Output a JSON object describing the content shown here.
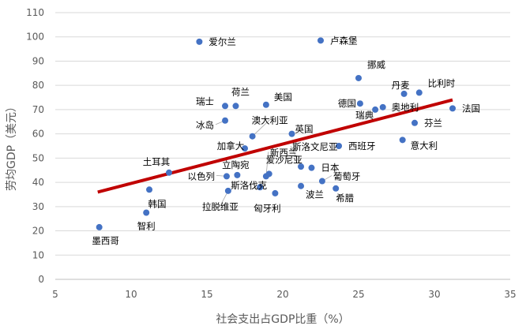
{
  "chart_data": {
    "type": "scatter",
    "xlabel": "社会支出占GDP比重（%）",
    "ylabel": "劳均GDP（美元）",
    "xlim": [
      5,
      35
    ],
    "ylim": [
      0,
      110
    ],
    "xticks": [
      5,
      10,
      15,
      20,
      25,
      30,
      35
    ],
    "yticks": [
      0,
      10,
      20,
      30,
      40,
      50,
      60,
      70,
      80,
      90,
      100,
      110
    ],
    "grid": "horizontal",
    "colors": {
      "points": "#4472c4",
      "trendline": "#c00000",
      "grid": "#d9d9d9"
    },
    "trendline": {
      "x": [
        7.8,
        31.2
      ],
      "y": [
        36,
        74
      ]
    },
    "points": [
      {
        "label": "墨西哥",
        "x": 7.9,
        "y": 21.5
      },
      {
        "label": "智利",
        "x": 11.0,
        "y": 27.5
      },
      {
        "label": "韩国",
        "x": 11.2,
        "y": 37
      },
      {
        "label": "土耳其",
        "x": 12.5,
        "y": 44
      },
      {
        "label": "爱尔兰",
        "x": 14.5,
        "y": 98
      },
      {
        "label": "瑞士",
        "x": 16.2,
        "y": 71.5
      },
      {
        "label": "荷兰",
        "x": 16.9,
        "y": 71.5
      },
      {
        "label": "冰岛",
        "x": 16.2,
        "y": 65.5
      },
      {
        "label": "以色列",
        "x": 16.3,
        "y": 42.5
      },
      {
        "label": "拉脱维亚",
        "x": 16.4,
        "y": 36.5
      },
      {
        "label": "立陶宛",
        "x": 17.0,
        "y": 43
      },
      {
        "label": "加拿大",
        "x": 17.5,
        "y": 54
      },
      {
        "label": "澳大利亚",
        "x": 18.0,
        "y": 59
      },
      {
        "label": "斯洛伐克",
        "x": 18.5,
        "y": 38
      },
      {
        "label": "美国",
        "x": 18.9,
        "y": 72
      },
      {
        "label": "新西兰",
        "x": 18.9,
        "y": 42.5
      },
      {
        "label": "爱沙尼亚",
        "x": 19.1,
        "y": 43.5
      },
      {
        "label": "匈牙利",
        "x": 19.5,
        "y": 35.5
      },
      {
        "label": "英国",
        "x": 20.6,
        "y": 60
      },
      {
        "label": "斯洛文尼亚",
        "x": 21.2,
        "y": 46.5
      },
      {
        "label": "波兰",
        "x": 21.2,
        "y": 38.5
      },
      {
        "label": "日本",
        "x": 21.9,
        "y": 46
      },
      {
        "label": "卢森堡",
        "x": 22.5,
        "y": 98.5
      },
      {
        "label": "葡萄牙",
        "x": 22.6,
        "y": 40.5
      },
      {
        "label": "希腊",
        "x": 23.5,
        "y": 37.5
      },
      {
        "label": "西班牙",
        "x": 23.7,
        "y": 55
      },
      {
        "label": "挪威",
        "x": 25.0,
        "y": 83
      },
      {
        "label": "德国",
        "x": 25.1,
        "y": 72.5
      },
      {
        "label": "瑞典",
        "x": 26.1,
        "y": 70
      },
      {
        "label": "奥地利",
        "x": 26.6,
        "y": 71
      },
      {
        "label": "丹麦",
        "x": 28.0,
        "y": 76.5
      },
      {
        "label": "意大利",
        "x": 27.9,
        "y": 57.5
      },
      {
        "label": "比利时",
        "x": 29.0,
        "y": 77
      },
      {
        "label": "芬兰",
        "x": 28.7,
        "y": 64.5
      },
      {
        "label": "法国",
        "x": 31.2,
        "y": 70.5
      }
    ]
  }
}
